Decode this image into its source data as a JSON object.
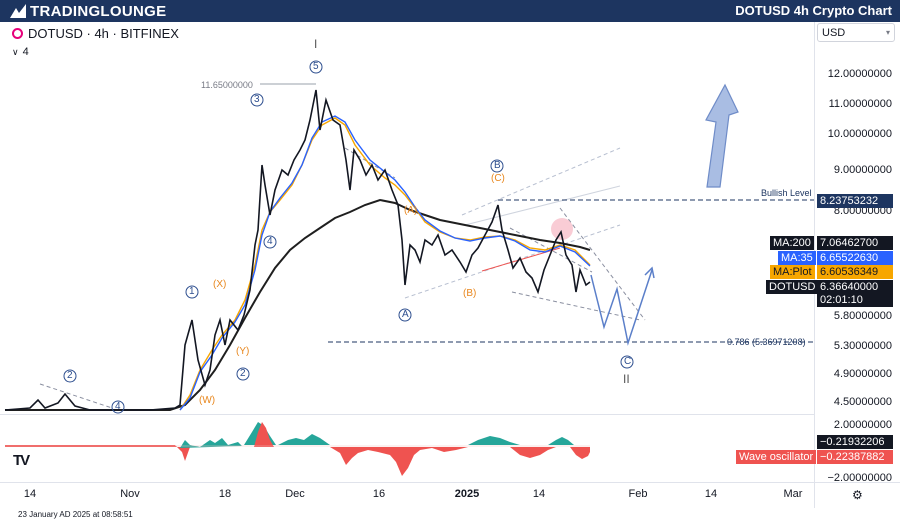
{
  "header": {
    "brand": "TRADINGLOUNGE",
    "title": "DOTUSD 4h Crypto Chart"
  },
  "symbol": {
    "label": "DOTUSD · 4h · BITFINEX",
    "indicator_count": "4"
  },
  "currency": "USD",
  "chart_data": {
    "type": "line",
    "y_axis_ticks": [
      "12.00000000",
      "11.00000000",
      "10.00000000",
      "9.00000000",
      "8.00000000",
      "5.80000000",
      "5.30000000",
      "4.90000000",
      "4.50000000"
    ],
    "x_axis_ticks": [
      "14",
      "Nov",
      "18",
      "Dec",
      "16",
      "2025",
      "14",
      "Feb",
      "14",
      "Mar"
    ],
    "price_labels": [
      {
        "name": "MA:200",
        "value": "7.06462700"
      },
      {
        "name": "MA:35",
        "value": "6.65522630"
      },
      {
        "name": "MA:Plot",
        "value": "6.60536349"
      },
      {
        "name": "DOTUSD",
        "value": "6.36640000"
      }
    ],
    "countdown": "02:01:10",
    "bullish_level": {
      "label": "Bullish Level",
      "value": "8.23753232"
    },
    "fib_level": "0.786 (5.36971208)",
    "high_marker": "11.65000000",
    "oscillator": {
      "name": "Wave oscillator",
      "values": [
        "−0.21932206",
        "−0.22387882"
      ],
      "axis_tick": "−2.00000000"
    },
    "wave_labels": {
      "blue": [
        "1",
        "2",
        "3",
        "4",
        "5",
        "2",
        "4",
        "A",
        "B",
        "C"
      ],
      "orange": [
        "(X)",
        "(Y)",
        "(W)",
        "(A)",
        "(B)",
        "(C)"
      ],
      "roman": [
        "I",
        "II"
      ]
    }
  },
  "footer": {
    "timestamp": "23 January AD 2025 at 08:58:51"
  },
  "colors": {
    "header_bg": "#1d3560",
    "price": "#131722",
    "ma200": "#1f1f1f",
    "ma35": "#2962ff",
    "maplot": "#f7a600",
    "osc_green": "#26a69a",
    "osc_red": "#ef5350",
    "wave_blue": "#2e4f8f",
    "wave_orange": "#e8871e"
  }
}
